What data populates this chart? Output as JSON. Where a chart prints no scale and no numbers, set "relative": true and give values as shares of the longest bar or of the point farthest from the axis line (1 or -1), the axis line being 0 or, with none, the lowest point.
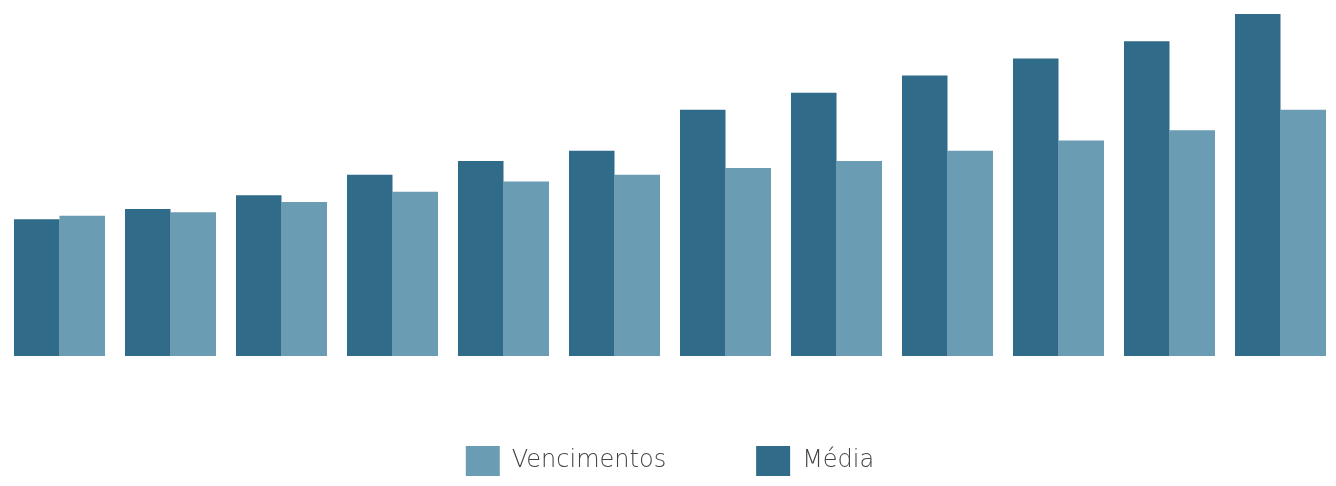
{
  "chart_data": {
    "type": "bar",
    "relative": true,
    "categories": [
      null,
      null,
      null,
      null,
      null,
      null,
      null,
      null,
      null,
      null,
      null,
      null
    ],
    "series": [
      {
        "name": "Média",
        "color": "#306b8a",
        "values": [
          0.4,
          0.43,
          0.47,
          0.53,
          0.57,
          0.6,
          0.72,
          0.77,
          0.82,
          0.87,
          0.92,
          1
        ]
      },
      {
        "name": "Vencimentos",
        "color": "#6a9cb4",
        "values": [
          0.41,
          0.42,
          0.45,
          0.48,
          0.51,
          0.53,
          0.55,
          0.57,
          0.6,
          0.63,
          0.66,
          0.72
        ]
      }
    ],
    "legend": "bottom",
    "grid": false
  }
}
